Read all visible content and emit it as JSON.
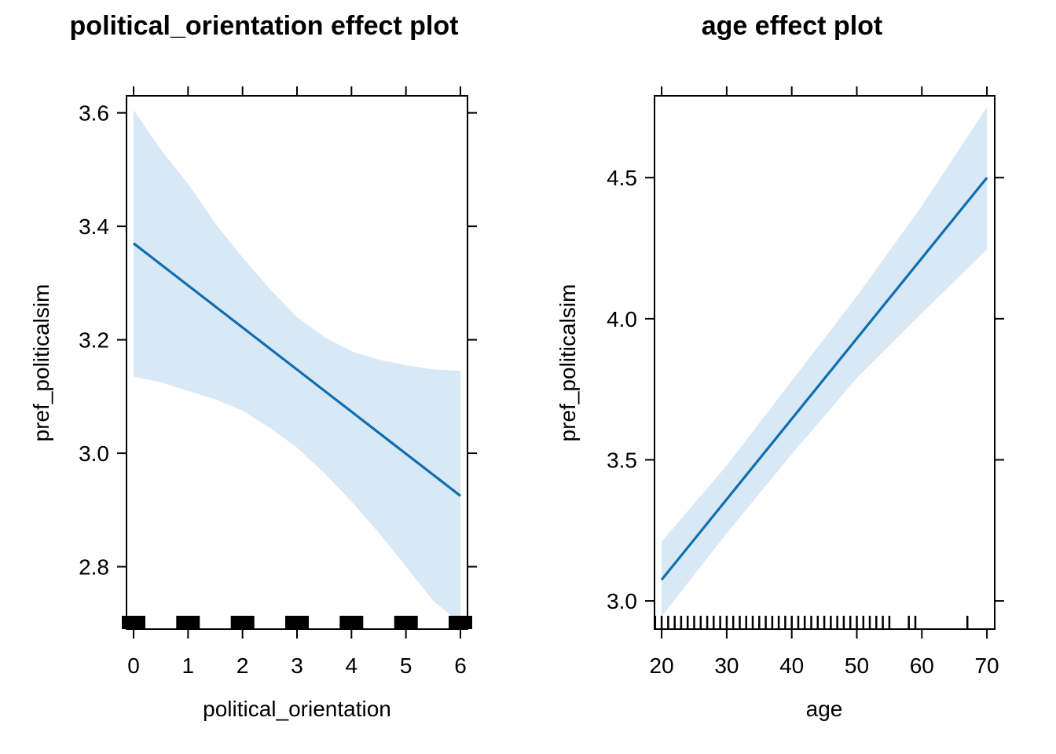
{
  "chart_data": [
    {
      "type": "line",
      "title": "political_orientation effect plot",
      "xlabel": "political_orientation",
      "ylabel": "pref_politicalsim",
      "xlim": [
        -0.13,
        6.13
      ],
      "ylim": [
        2.69,
        3.63
      ],
      "xticks": [
        0,
        1,
        2,
        3,
        4,
        5,
        6
      ],
      "xtick_labels": [
        "0",
        "1",
        "2",
        "3",
        "4",
        "5",
        "6"
      ],
      "yticks": [
        2.8,
        3.0,
        3.2,
        3.4,
        3.6
      ],
      "ytick_labels": [
        "2.8",
        "3.0",
        "3.2",
        "3.4",
        "3.6"
      ],
      "series": [
        {
          "x": [
            0,
            6
          ],
          "y": [
            3.37,
            2.925
          ],
          "band_x": [
            0,
            0.5,
            1,
            1.5,
            2,
            2.5,
            3,
            3.5,
            4,
            4.5,
            5,
            5.5,
            6
          ],
          "band_lower": [
            3.135,
            3.125,
            3.11,
            3.095,
            3.075,
            3.045,
            3.01,
            2.965,
            2.915,
            2.86,
            2.8,
            2.74,
            2.7
          ],
          "band_upper": [
            3.605,
            3.535,
            3.475,
            3.405,
            3.345,
            3.29,
            3.24,
            3.205,
            3.18,
            3.165,
            3.155,
            3.148,
            3.145
          ]
        }
      ],
      "rug": [
        0,
        1,
        2,
        3,
        4,
        5,
        6
      ],
      "rug_style": "block",
      "grid": false
    },
    {
      "type": "line",
      "title": "age effect plot",
      "xlabel": "age",
      "ylabel": "pref_politicalsim",
      "xlim": [
        18.9,
        71.2
      ],
      "ylim": [
        2.9,
        4.79
      ],
      "xticks": [
        20,
        30,
        40,
        50,
        60,
        70
      ],
      "xtick_labels": [
        "20",
        "30",
        "40",
        "50",
        "60",
        "70"
      ],
      "yticks": [
        3.0,
        3.5,
        4.0,
        4.5
      ],
      "ytick_labels": [
        "3.0",
        "3.5",
        "4.0",
        "4.5"
      ],
      "series": [
        {
          "x": [
            20,
            70
          ],
          "y": [
            3.075,
            4.5
          ],
          "band_x": [
            20,
            30,
            40,
            50,
            60,
            70
          ],
          "band_lower": [
            2.945,
            3.24,
            3.52,
            3.79,
            4.02,
            4.245
          ],
          "band_upper": [
            3.21,
            3.48,
            3.78,
            4.08,
            4.4,
            4.75
          ]
        }
      ],
      "rug": [
        19,
        20,
        21,
        22,
        23,
        24,
        25,
        26,
        27,
        28,
        29,
        30,
        31,
        32,
        33,
        34,
        35,
        36,
        37,
        38,
        39,
        40,
        41,
        42,
        43,
        44,
        45,
        46,
        47,
        48,
        49,
        50,
        51,
        52,
        53,
        54,
        55,
        58,
        59,
        67
      ],
      "rug_style": "lines",
      "grid": false
    }
  ],
  "colors": {
    "fit": "#0e6fae",
    "band": "#d9e8f5",
    "frame": "#000000"
  }
}
